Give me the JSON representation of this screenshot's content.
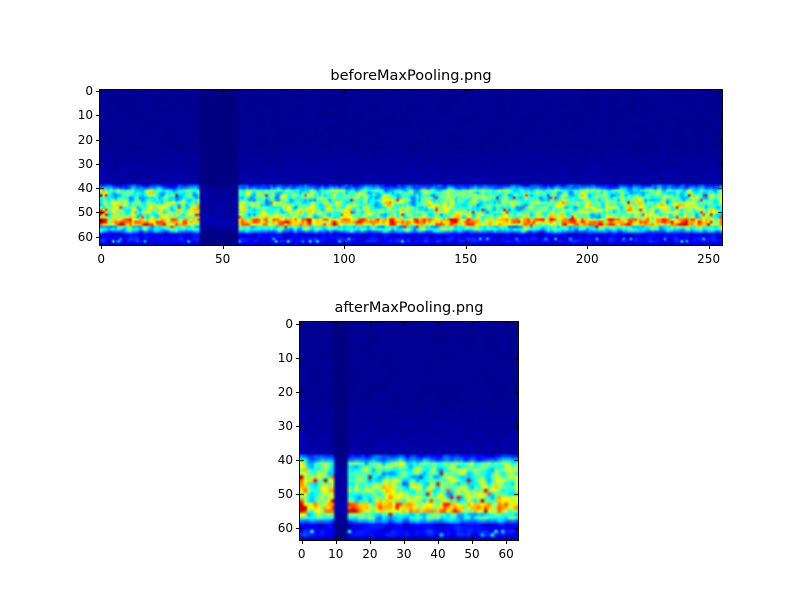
{
  "figure": {
    "background": "#ffffff",
    "text_color": "#000000"
  },
  "charts": [
    {
      "type": "heatmap",
      "title": "beforeMaxPooling.png",
      "colormap": "jet",
      "cols": 256,
      "rows": 64,
      "xlim": [
        -0.5,
        255.5
      ],
      "ylim": [
        -0.5,
        63.5
      ],
      "x_ticks": [
        0,
        50,
        100,
        150,
        200,
        250
      ],
      "y_ticks": [
        0,
        10,
        20,
        30,
        40,
        50,
        60
      ],
      "background_value_color": "#000080",
      "seed": 20,
      "pattern": {
        "description": "spectrogram-like image: dark blue background rows 0-38 with faint mottling rows 25-40, active noisy band rows 41-58 (cyan/green with yellow-red hotspots), bright streak rows 53-55, silent dark vertical gap columns 41-56 with bright dash at column 40, hot red spots in first columns, faint dashes rows 61-62",
        "active_rows": [
          41,
          58
        ],
        "streak_rows": [
          53,
          55
        ],
        "gap_cols": [
          41,
          56
        ],
        "edge_dash_col": 40,
        "start_hot_cols": 3,
        "tail_rows": [
          61,
          62
        ]
      }
    },
    {
      "type": "heatmap",
      "title": "afterMaxPooling.png",
      "colormap": "jet",
      "cols": 64,
      "rows": 64,
      "xlim": [
        -0.5,
        63.5
      ],
      "ylim": [
        -0.5,
        63.5
      ],
      "x_ticks": [
        0,
        10,
        20,
        30,
        40,
        50,
        60
      ],
      "y_ticks": [
        0,
        10,
        20,
        30,
        40,
        50,
        60
      ],
      "background_value_color": "#000080",
      "seed": 77,
      "pattern": {
        "description": "max-pooled version of the spectrogram above: same structure with silent gap at columns 10-13 and bright dash at column 9",
        "active_rows": [
          41,
          58
        ],
        "streak_rows": [
          53,
          55
        ],
        "gap_cols": [
          10,
          13
        ],
        "edge_dash_col": 9,
        "start_hot_cols": 2,
        "tail_rows": [
          61,
          62
        ]
      }
    }
  ]
}
